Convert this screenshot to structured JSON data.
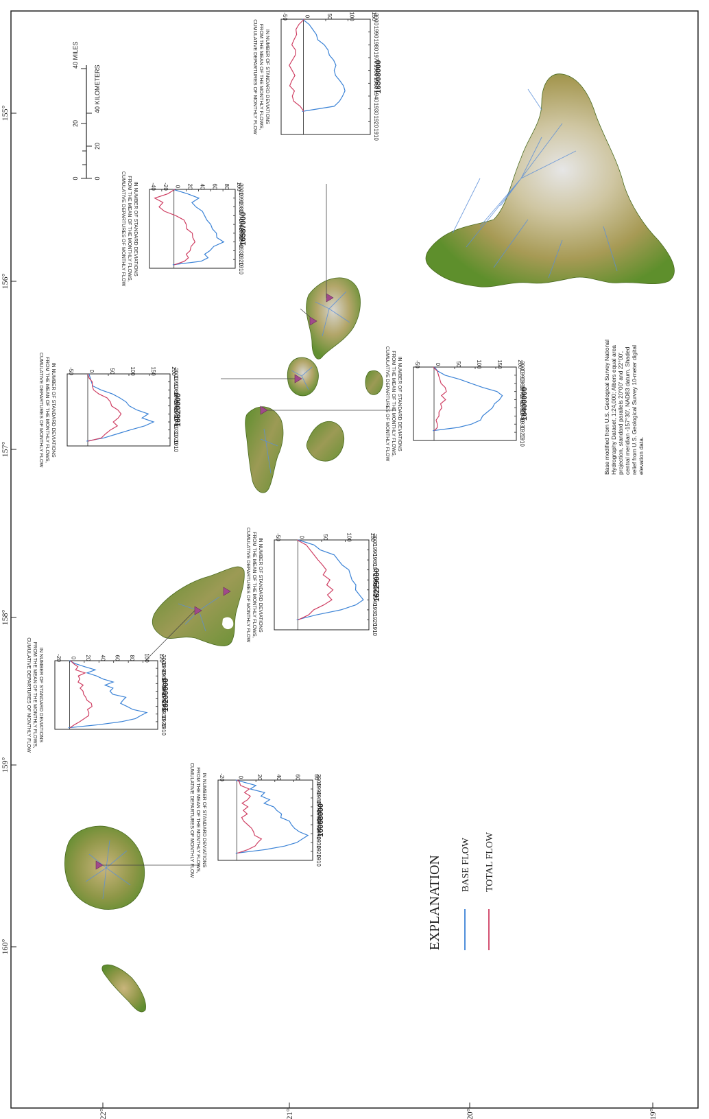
{
  "colors": {
    "base_flow": "#3a82d6",
    "total_flow": "#cf3f63",
    "land_low": "#6e9a3a",
    "land_mid": "#bfae6a",
    "land_high": "#d9d9d9",
    "stream": "#5b8ed8",
    "gage_marker": "#a04a8a",
    "frame": "#222222"
  },
  "map": {
    "longitude_labels": [
      "160°",
      "159°",
      "158°",
      "157°",
      "156°",
      "155°"
    ],
    "latitude_labels": [
      "22°",
      "21°",
      "20°",
      "19°"
    ],
    "scale_bar": {
      "miles_ticks": [
        "0",
        "20",
        "40 MILES"
      ],
      "km_ticks": [
        "0",
        "20",
        "40 KILOMETERS"
      ]
    },
    "credit": "Base modified from U.S. Geological Survey National Hydrography Dataset, 1:24,000; Albers equal area projection, standard parallels 20°00' and 22°00', central meridian -157°30', NAD83 datum. Shaded relief from U.S. Geological Survey 10-meter digital elevation data.",
    "explanation": {
      "title": "EXPLANATION",
      "items": [
        {
          "label": "BASE FLOW",
          "color_key": "base_flow"
        },
        {
          "label": "TOTAL FLOW",
          "color_key": "total_flow"
        }
      ]
    }
  },
  "chart_data": [
    {
      "type": "line",
      "station": "16068000",
      "ylabel": "CUMULATIVE DEPARTURES OF MONTHLY FLOW FROM THE MEAN OF THE MONTHLY FLOWS, IN NUMBER OF STANDARD DEVIATIONS",
      "x_ticks": [
        1910,
        1920,
        1930,
        1940,
        1950,
        1960,
        1970,
        1980,
        1990,
        2000
      ],
      "y_ticks": [
        -20,
        0,
        20,
        40,
        60,
        80
      ],
      "ylim": [
        -20,
        80
      ],
      "xlim": [
        1910,
        2000
      ],
      "series": [
        {
          "name": "BASE FLOW",
          "x": [
            1918,
            1922,
            1926,
            1930,
            1934,
            1938,
            1942,
            1946,
            1950,
            1954,
            1958,
            1962,
            1966,
            1970,
            1974,
            1978,
            1982,
            1986,
            1990,
            1994,
            1998,
            2000
          ],
          "y": [
            0,
            30,
            50,
            62,
            70,
            75,
            65,
            62,
            58,
            55,
            45,
            48,
            42,
            38,
            30,
            35,
            25,
            28,
            15,
            20,
            5,
            0
          ]
        },
        {
          "name": "TOTAL FLOW",
          "x": [
            1918,
            1922,
            1926,
            1930,
            1934,
            1938,
            1942,
            1946,
            1950,
            1954,
            1958,
            1962,
            1966,
            1970,
            1974,
            1978,
            1982,
            1986,
            1990,
            1994,
            1998,
            2000
          ],
          "y": [
            0,
            10,
            20,
            22,
            25,
            20,
            18,
            15,
            10,
            8,
            5,
            10,
            8,
            12,
            5,
            10,
            15,
            8,
            12,
            5,
            3,
            0
          ]
        }
      ]
    },
    {
      "type": "line",
      "station": "16200000",
      "ylabel": "CUMULATIVE DEPARTURES OF MONTHLY FLOW FROM THE MEAN OF THE MONTHLY FLOWS, IN NUMBER OF STANDARD DEVIATIONS",
      "x_ticks": [
        1910,
        1920,
        1930,
        1940,
        1950,
        1960,
        1970,
        1980,
        1990,
        2000
      ],
      "y_ticks": [
        -20,
        0,
        20,
        40,
        60,
        80,
        100,
        120
      ],
      "ylim": [
        -20,
        120
      ],
      "xlim": [
        1910,
        2000
      ],
      "series": [
        {
          "name": "BASE FLOW",
          "x": [
            1912,
            1916,
            1920,
            1924,
            1928,
            1932,
            1936,
            1940,
            1944,
            1948,
            1952,
            1956,
            1960,
            1964,
            1968,
            1972,
            1976,
            1980,
            1984,
            1988,
            1992,
            1996,
            2000
          ],
          "y": [
            0,
            40,
            70,
            88,
            98,
            105,
            85,
            80,
            70,
            72,
            75,
            60,
            55,
            58,
            50,
            60,
            45,
            35,
            25,
            35,
            20,
            10,
            0
          ]
        },
        {
          "name": "TOTAL FLOW",
          "x": [
            1912,
            1916,
            1920,
            1924,
            1928,
            1932,
            1936,
            1940,
            1944,
            1948,
            1952,
            1956,
            1960,
            1964,
            1968,
            1972,
            1976,
            1980,
            1984,
            1988,
            1992,
            1996,
            2000
          ],
          "y": [
            0,
            5,
            15,
            20,
            25,
            28,
            25,
            30,
            28,
            25,
            22,
            18,
            20,
            15,
            18,
            10,
            15,
            12,
            20,
            10,
            12,
            5,
            0
          ]
        }
      ]
    },
    {
      "type": "line",
      "station": "16229000",
      "ylabel": "CUMULATIVE DEPARTURES OF MONTHLY FLOW FROM THE MEAN OF THE MONTHLY FLOWS, IN NUMBER OF STANDARD DEVIATIONS",
      "x_ticks": [
        1910,
        1920,
        1930,
        1940,
        1950,
        1960,
        1970,
        1980,
        1990,
        2000
      ],
      "y_ticks": [
        -50,
        0,
        50,
        100,
        150
      ],
      "ylim": [
        -50,
        150
      ],
      "xlim": [
        1910,
        2000
      ],
      "series": [
        {
          "name": "BASE FLOW",
          "x": [
            1920,
            1925,
            1930,
            1935,
            1940,
            1945,
            1950,
            1955,
            1960,
            1965,
            1970,
            1975,
            1980,
            1985,
            1990,
            1995,
            2000
          ],
          "y": [
            0,
            40,
            90,
            120,
            140,
            130,
            120,
            125,
            115,
            110,
            105,
            95,
            85,
            75,
            50,
            35,
            0
          ]
        },
        {
          "name": "TOTAL FLOW",
          "x": [
            1920,
            1925,
            1930,
            1935,
            1940,
            1945,
            1950,
            1955,
            1960,
            1965,
            1970,
            1975,
            1980,
            1985,
            1990,
            1995,
            2000
          ],
          "y": [
            0,
            20,
            35,
            55,
            70,
            65,
            75,
            60,
            65,
            55,
            60,
            50,
            45,
            35,
            25,
            15,
            0
          ]
        }
      ]
    },
    {
      "type": "line",
      "station": "16620000",
      "ylabel": "CUMULATIVE DEPARTURES OF MONTHLY FLOW FROM THE MEAN OF THE MONTHLY FLOWS, IN NUMBER OF STANDARD DEVIATIONS",
      "x_ticks": [
        1910,
        1920,
        1930,
        1940,
        1950,
        1960,
        1970,
        1980,
        1990,
        2000
      ],
      "y_ticks": [
        -50,
        0,
        50,
        100,
        150,
        200
      ],
      "ylim": [
        -50,
        200
      ],
      "xlim": [
        1910,
        2000
      ],
      "series": [
        {
          "name": "BASE FLOW",
          "x": [
            1916,
            1920,
            1925,
            1930,
            1935,
            1940,
            1945,
            1950,
            1955,
            1960,
            1965,
            1970,
            1975,
            1980,
            1985,
            1990,
            1995,
            2000
          ],
          "y": [
            0,
            40,
            70,
            100,
            140,
            160,
            130,
            150,
            120,
            100,
            90,
            80,
            60,
            30,
            15,
            10,
            5,
            0
          ]
        },
        {
          "name": "TOTAL FLOW",
          "x": [
            1916,
            1920,
            1925,
            1930,
            1935,
            1940,
            1945,
            1950,
            1955,
            1960,
            1965,
            1970,
            1975,
            1980,
            1985,
            1990,
            1995,
            2000
          ],
          "y": [
            0,
            30,
            45,
            55,
            70,
            65,
            75,
            80,
            70,
            60,
            55,
            45,
            30,
            15,
            10,
            8,
            5,
            0
          ]
        }
      ]
    },
    {
      "type": "line",
      "station": "16400000",
      "ylabel": "CUMULATIVE DEPARTURES OF MONTHLY FLOW FROM THE MEAN OF THE MONTHLY FLOWS, IN NUMBER OF STANDARD DEVIATIONS",
      "x_ticks": [
        1910,
        1920,
        1930,
        1940,
        1950,
        1960,
        1970,
        1980,
        1990,
        2000
      ],
      "y_ticks": [
        -50,
        0,
        50,
        100,
        150,
        200
      ],
      "ylim": [
        -50,
        200
      ],
      "xlim": [
        1910,
        2000
      ],
      "series": [
        {
          "name": "BASE FLOW",
          "x": [
            1922,
            1926,
            1930,
            1935,
            1940,
            1945,
            1950,
            1955,
            1960,
            1965,
            1970,
            1975,
            1980,
            1985,
            1990,
            1995,
            2000
          ],
          "y": [
            0,
            60,
            90,
            110,
            120,
            130,
            140,
            150,
            160,
            165,
            150,
            120,
            90,
            60,
            30,
            10,
            0
          ]
        },
        {
          "name": "TOTAL FLOW",
          "x": [
            1922,
            1926,
            1930,
            1935,
            1940,
            1945,
            1950,
            1955,
            1960,
            1965,
            1970,
            1975,
            1980,
            1985,
            1990,
            1995,
            2000
          ],
          "y": [
            0,
            5,
            10,
            5,
            10,
            15,
            20,
            15,
            25,
            20,
            30,
            25,
            20,
            15,
            10,
            5,
            0
          ]
        }
      ]
    },
    {
      "type": "line",
      "station": "16587000",
      "ylabel": "CUMULATIVE DEPARTURES OF MONTHLY FLOW FROM THE MEAN OF THE MONTHLY FLOWS, IN NUMBER OF STANDARD DEVIATIONS",
      "x_ticks": [
        1910,
        1920,
        1930,
        1940,
        1950,
        1960,
        1970,
        1980,
        1990,
        2000
      ],
      "y_ticks": [
        -40,
        -20,
        0,
        20,
        40,
        60,
        80,
        100
      ],
      "ylim": [
        -40,
        100
      ],
      "xlim": [
        1910,
        2000
      ],
      "series": [
        {
          "name": "BASE FLOW",
          "x": [
            1914,
            1918,
            1922,
            1926,
            1930,
            1935,
            1940,
            1945,
            1950,
            1955,
            1960,
            1965,
            1970,
            1975,
            1980,
            1985,
            1990,
            1995,
            2000
          ],
          "y": [
            0,
            45,
            55,
            48,
            60,
            65,
            80,
            72,
            70,
            62,
            58,
            55,
            50,
            45,
            38,
            30,
            40,
            20,
            0
          ]
        },
        {
          "name": "TOTAL FLOW",
          "x": [
            1914,
            1918,
            1922,
            1926,
            1930,
            1935,
            1940,
            1945,
            1950,
            1955,
            1960,
            1965,
            1970,
            1975,
            1980,
            1985,
            1990,
            1995,
            2000
          ],
          "y": [
            0,
            15,
            25,
            20,
            25,
            30,
            35,
            30,
            28,
            22,
            20,
            15,
            5,
            -15,
            -25,
            -20,
            -30,
            -10,
            0
          ]
        }
      ]
    },
    {
      "type": "line",
      "station": "16508000",
      "ylabel": "CUMULATIVE DEPARTURES OF MONTHLY FLOW FROM THE MEAN OF THE MONTHLY FLOWS, IN NUMBER OF STANDARD DEVIATIONS",
      "x_ticks": [
        1910,
        1920,
        1930,
        1940,
        1950,
        1960,
        1970,
        1980,
        1990,
        2000
      ],
      "y_ticks": [
        -50,
        0,
        50,
        100,
        150
      ],
      "ylim": [
        -50,
        150
      ],
      "xlim": [
        1910,
        2000
      ],
      "series": [
        {
          "name": "BASE FLOW",
          "x": [
            1928,
            1932,
            1936,
            1940,
            1944,
            1948,
            1952,
            1956,
            1960,
            1964,
            1968,
            1972,
            1976,
            1980,
            1984,
            1988,
            1992,
            1996,
            2000
          ],
          "y": [
            0,
            70,
            80,
            85,
            95,
            90,
            80,
            75,
            70,
            72,
            65,
            60,
            55,
            45,
            35,
            30,
            20,
            10,
            0
          ]
        },
        {
          "name": "TOTAL FLOW",
          "x": [
            1928,
            1932,
            1936,
            1940,
            1944,
            1948,
            1952,
            1956,
            1960,
            1964,
            1968,
            1972,
            1976,
            1980,
            1984,
            1988,
            1992,
            1996,
            2000
          ],
          "y": [
            0,
            -10,
            -20,
            -25,
            -22,
            -28,
            -25,
            -20,
            -28,
            -30,
            -25,
            -20,
            -15,
            -25,
            -22,
            -18,
            -15,
            -10,
            0
          ]
        }
      ]
    }
  ]
}
